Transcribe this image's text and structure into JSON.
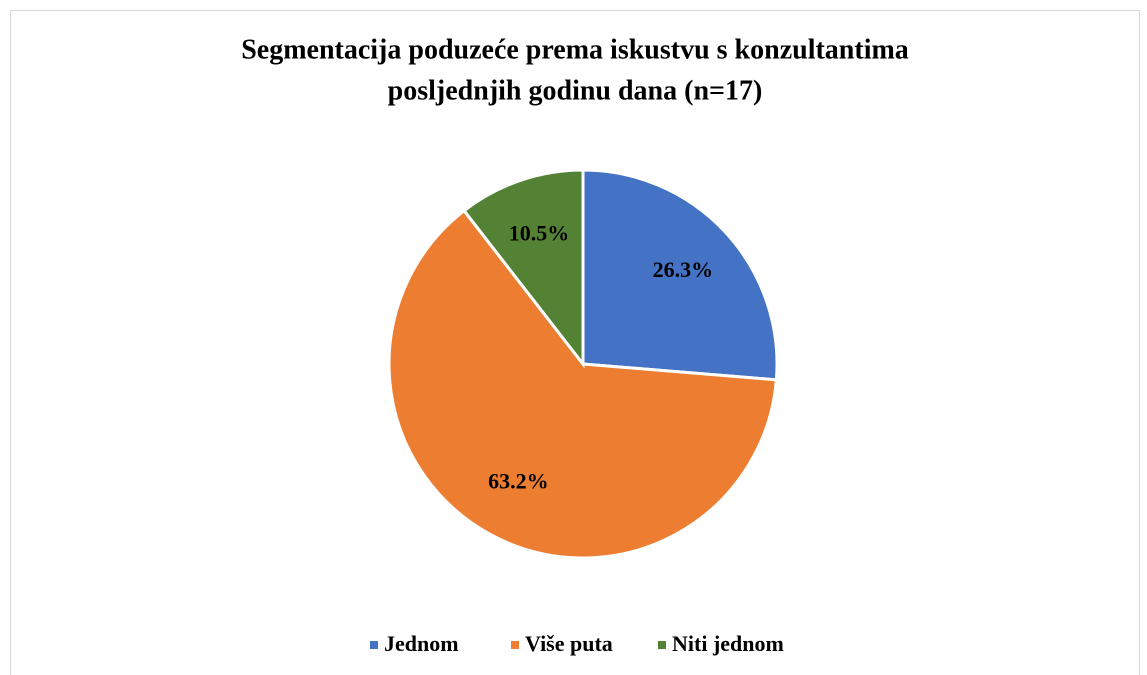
{
  "chart_data": {
    "type": "pie",
    "title": [
      "Segmentacija poduzeće prema iskustvu s konzultantima",
      "posljednjih godinu dana (n=17)"
    ],
    "categories": [
      "Jednom",
      "Više puta",
      "Niti jednom"
    ],
    "values": [
      26.3,
      63.2,
      10.5
    ],
    "value_labels": [
      "26.3%",
      "63.2%",
      "10.5%"
    ],
    "colors": [
      "#4472c4",
      "#ed7d31",
      "#548235"
    ],
    "legend": "bottom"
  }
}
